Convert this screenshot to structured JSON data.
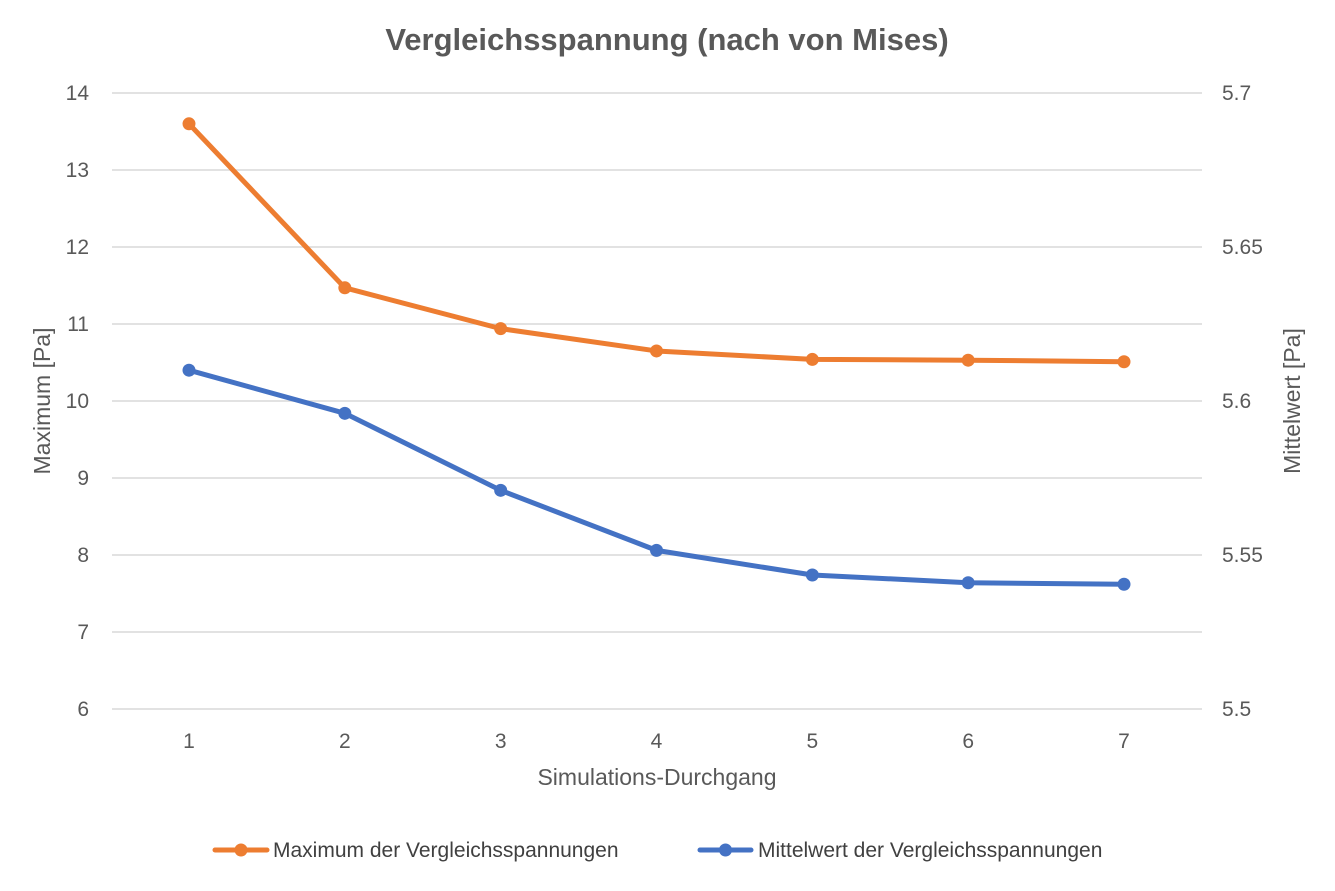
{
  "chart_data": {
    "type": "line",
    "title": "Vergleichsspannung (nach von Mises)",
    "xlabel": "Simulations-Durchgang",
    "ylabel": "Maximum [Pa]",
    "y2label": "Mittelwert  [Pa]",
    "categories": [
      "1",
      "2",
      "3",
      "4",
      "5",
      "6",
      "7"
    ],
    "ylim": [
      6,
      14
    ],
    "yticks": [
      "6",
      "7",
      "8",
      "9",
      "10",
      "11",
      "12",
      "13",
      "14"
    ],
    "y2lim": [
      5.5,
      5.7
    ],
    "y2ticks": [
      "5.5",
      "5.55",
      "5.6",
      "5.65",
      "5.7"
    ],
    "grid": true,
    "legend_position": "bottom",
    "series": [
      {
        "name": "Maximum der Vergleichsspannungen",
        "axis": "left",
        "color": "#ED7D31",
        "values": [
          13.6,
          11.47,
          10.94,
          10.65,
          10.54,
          10.53,
          10.51
        ]
      },
      {
        "name": "Mittelwert der Vergleichsspannungen",
        "axis": "right",
        "color": "#4472C4",
        "values": [
          5.61,
          5.596,
          5.571,
          5.5515,
          5.5435,
          5.541,
          5.5405
        ]
      }
    ]
  }
}
